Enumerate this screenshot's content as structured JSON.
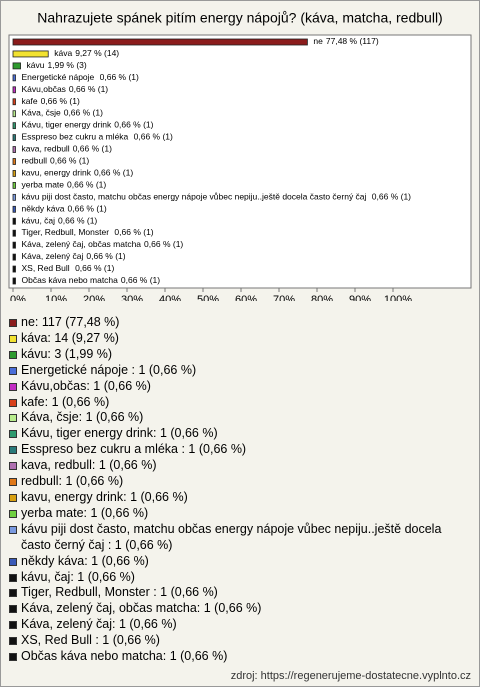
{
  "chart_data": {
    "type": "hbar",
    "title": "Nahrazujete spánek pitím energy nápojů? (káva, matcha, redbull)",
    "categories": [
      "ne",
      "káva",
      "kávu",
      "Energetické nápoje ",
      "Kávu,občas",
      "kafe",
      "Káva, čsje",
      "Kávu, tiger energy drink",
      "Esspreso bez cukru a mléka ",
      "kava, redbull",
      "redbull",
      "kavu, energy drink",
      "yerba mate",
      "kávu piji dost často, matchu občas energy nápoje vůbec nepiju..ještě docela často černý čaj ",
      "někdy káva",
      "kávu, čaj",
      "Tiger, Redbull, Monster ",
      "Káva, zelený čaj, občas matcha",
      "Káva, zelený čaj",
      "XS, Red Bull ",
      "Občas káva nebo matcha"
    ],
    "values": [
      77.48,
      9.27,
      1.99,
      0.66,
      0.66,
      0.66,
      0.66,
      0.66,
      0.66,
      0.66,
      0.66,
      0.66,
      0.66,
      0.66,
      0.66,
      0.66,
      0.66,
      0.66,
      0.66,
      0.66,
      0.66
    ],
    "value_labels": [
      "77,48 % (117)",
      "9,27 % (14)",
      "1,99 % (3)",
      "0,66 % (1)",
      "0,66 % (1)",
      "0,66 % (1)",
      "0,66 % (1)",
      "0,66 % (1)",
      "0,66 % (1)",
      "0,66 % (1)",
      "0,66 % (1)",
      "0,66 % (1)",
      "0,66 % (1)",
      "0,66 % (1)",
      "0,66 % (1)",
      "0,66 % (1)",
      "0,66 % (1)",
      "0,66 % (1)",
      "0,66 % (1)",
      "0,66 % (1)",
      "0,66 % (1)"
    ],
    "colors": [
      "#8b1c1c",
      "#f2e230",
      "#2e9a2e",
      "#4a6ed8",
      "#c22cc2",
      "#d8401a",
      "#b8ec8c",
      "#2e9a6e",
      "#2a7a7a",
      "#b070b0",
      "#e07818",
      "#d8a010",
      "#70d040",
      "#7a9ae0",
      "#3a5ab8",
      "#111111",
      "#111111",
      "#111111",
      "#111111",
      "#111111",
      "#111111"
    ],
    "legend": [
      "ne: 117 (77,48 %)",
      "káva: 14 (9,27 %)",
      "kávu: 3 (1,99 %)",
      "Energetické nápoje : 1 (0,66 %)",
      "Kávu,občas: 1 (0,66 %)",
      "kafe: 1 (0,66 %)",
      "Káva, čsje: 1 (0,66 %)",
      "Kávu, tiger energy drink: 1 (0,66 %)",
      "Esspreso bez cukru a mléka : 1 (0,66 %)",
      "kava, redbull: 1 (0,66 %)",
      "redbull: 1 (0,66 %)",
      "kavu, energy drink: 1 (0,66 %)",
      "yerba mate: 1 (0,66 %)",
      "kávu piji dost často, matchu občas energy nápoje vůbec nepiju..ještě docela často černý čaj : 1 (0,66 %)",
      "někdy káva: 1 (0,66 %)",
      "kávu, čaj: 1 (0,66 %)",
      "Tiger, Redbull, Monster : 1 (0,66 %)",
      "Káva, zelený čaj, občas matcha: 1 (0,66 %)",
      "Káva, zelený čaj: 1 (0,66 %)",
      "XS, Red Bull : 1 (0,66 %)",
      "Občas káva nebo matcha: 1 (0,66 %)"
    ],
    "xlim": [
      0,
      100
    ],
    "xticks": [
      {
        "value": 0,
        "label": "0%"
      },
      {
        "value": 10,
        "label": "10%"
      },
      {
        "value": 20,
        "label": "20%"
      },
      {
        "value": 30,
        "label": "30%"
      },
      {
        "value": 40,
        "label": "40%"
      },
      {
        "value": 50,
        "label": "50%"
      },
      {
        "value": 60,
        "label": "60%"
      },
      {
        "value": 70,
        "label": "70%"
      },
      {
        "value": 80,
        "label": "80%"
      },
      {
        "value": 90,
        "label": "90%"
      },
      {
        "value": 100,
        "label": "100%"
      }
    ],
    "source": "zdroj: https://regenerujeme-dostatecne.vyplnto.cz"
  }
}
